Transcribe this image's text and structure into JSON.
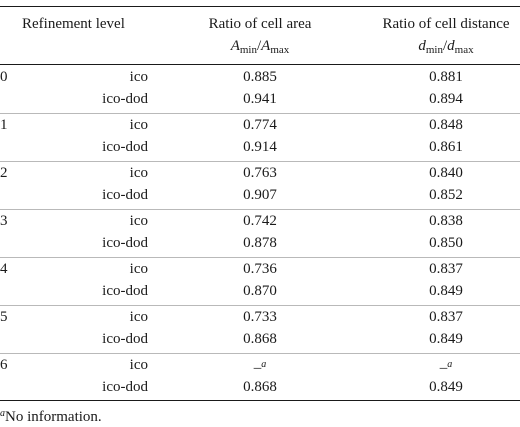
{
  "table": {
    "headers": {
      "level": "Refinement level",
      "area": "Ratio of cell area",
      "area_formula_a": "A",
      "area_formula_sub1": "min",
      "area_formula_slash": "/",
      "area_formula_b": "A",
      "area_formula_sub2": "max",
      "distance": "Ratio of cell distance",
      "dist_formula_a": "d",
      "dist_formula_sub1": "min",
      "dist_formula_slash": "/",
      "dist_formula_b": "d",
      "dist_formula_sub2": "max"
    },
    "groups": [
      {
        "level": "0",
        "rows": [
          {
            "grid": "ico",
            "area": "0.885",
            "distance": "0.881"
          },
          {
            "grid": "ico-dod",
            "area": "0.941",
            "distance": "0.894"
          }
        ]
      },
      {
        "level": "1",
        "rows": [
          {
            "grid": "ico",
            "area": "0.774",
            "distance": "0.848"
          },
          {
            "grid": "ico-dod",
            "area": "0.914",
            "distance": "0.861"
          }
        ]
      },
      {
        "level": "2",
        "rows": [
          {
            "grid": "ico",
            "area": "0.763",
            "distance": "0.840"
          },
          {
            "grid": "ico-dod",
            "area": "0.907",
            "distance": "0.852"
          }
        ]
      },
      {
        "level": "3",
        "rows": [
          {
            "grid": "ico",
            "area": "0.742",
            "distance": "0.838"
          },
          {
            "grid": "ico-dod",
            "area": "0.878",
            "distance": "0.850"
          }
        ]
      },
      {
        "level": "4",
        "rows": [
          {
            "grid": "ico",
            "area": "0.736",
            "distance": "0.837"
          },
          {
            "grid": "ico-dod",
            "area": "0.870",
            "distance": "0.849"
          }
        ]
      },
      {
        "level": "5",
        "rows": [
          {
            "grid": "ico",
            "area": "0.733",
            "distance": "0.837"
          },
          {
            "grid": "ico-dod",
            "area": "0.868",
            "distance": "0.849"
          }
        ]
      },
      {
        "level": "6",
        "rows": [
          {
            "grid": "ico",
            "area": "–",
            "area_sup": "a",
            "distance": "–",
            "distance_sup": "a"
          },
          {
            "grid": "ico-dod",
            "area": "0.868",
            "distance": "0.849"
          }
        ]
      }
    ],
    "footnote_mark": "a",
    "footnote_text": "No information."
  }
}
